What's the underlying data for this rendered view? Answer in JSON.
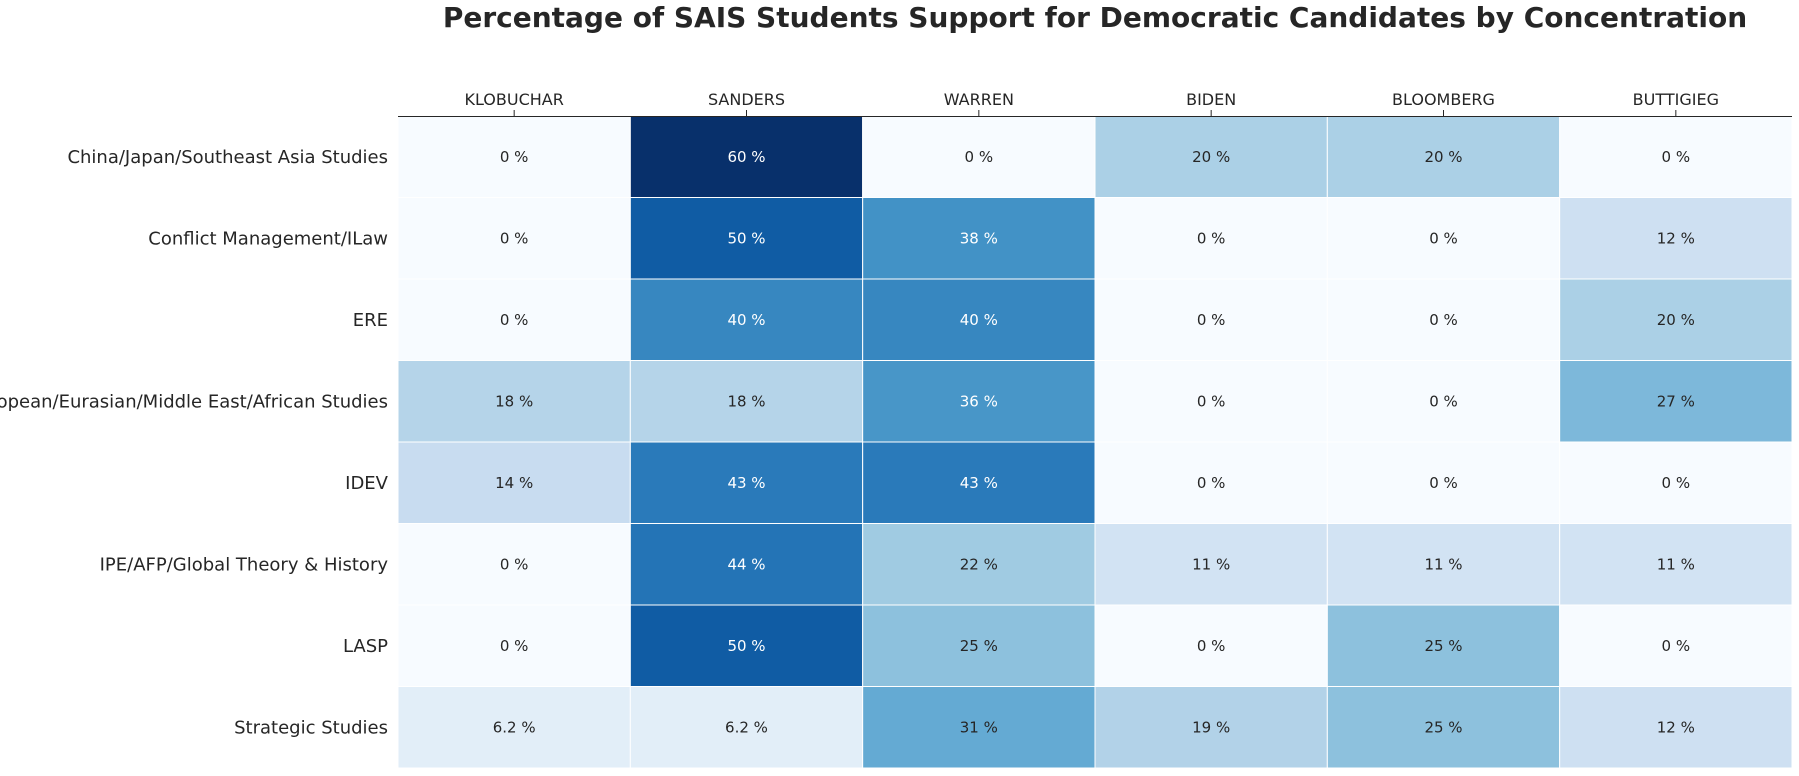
{
  "chart_data": {
    "type": "heatmap",
    "title": "Percentage of SAIS Students Support for Democratic Candidates by Concentration",
    "columns": [
      "KLOBUCHAR",
      "SANDERS",
      "WARREN",
      "BIDEN",
      "BLOOMBERG",
      "BUTTIGIEG"
    ],
    "rows": [
      "China/Japan/Southeast Asia Studies",
      "Conflict Management/ILaw",
      "ERE",
      "European/Eurasian/Middle East/African Studies",
      "IDEV",
      "IPE/AFP/Global Theory & History",
      "LASP",
      "Strategic Studies"
    ],
    "values": [
      [
        0,
        60,
        0,
        20,
        20,
        0
      ],
      [
        0,
        50,
        37.5,
        0,
        0,
        12.5
      ],
      [
        0,
        40,
        40,
        0,
        0,
        20
      ],
      [
        18.2,
        18.2,
        36.4,
        0,
        0,
        27.3
      ],
      [
        14.3,
        42.9,
        42.9,
        0,
        0,
        0
      ],
      [
        0,
        44.4,
        22.2,
        11.1,
        11.1,
        11.1
      ],
      [
        0,
        50,
        25,
        0,
        25,
        0
      ],
      [
        6.2,
        6.2,
        31.2,
        18.8,
        25,
        12.5
      ]
    ],
    "cell_labels": [
      [
        "0 %",
        "60 %",
        "0 %",
        "20 %",
        "20 %",
        "0 %"
      ],
      [
        "0 %",
        "50 %",
        "38 %",
        "0 %",
        "0 %",
        "12 %"
      ],
      [
        "0 %",
        "40 %",
        "40 %",
        "0 %",
        "0 %",
        "20 %"
      ],
      [
        "18 %",
        "18 %",
        "36 %",
        "0 %",
        "0 %",
        "27 %"
      ],
      [
        "14 %",
        "43 %",
        "43 %",
        "0 %",
        "0 %",
        "0 %"
      ],
      [
        "0 %",
        "44 %",
        "22 %",
        "11 %",
        "11 %",
        "11 %"
      ],
      [
        "0 %",
        "50 %",
        "25 %",
        "0 %",
        "25 %",
        "0 %"
      ],
      [
        "6.2 %",
        "6.2 %",
        "31 %",
        "19 %",
        "25 %",
        "12 %"
      ]
    ],
    "value_range": [
      0,
      60
    ],
    "colormap": "Blues",
    "colormap_stops": [
      "#f7fbff",
      "#deebf7",
      "#c6dbef",
      "#9ecae1",
      "#6baed6",
      "#4292c6",
      "#2171b5",
      "#08519c",
      "#08306b"
    ],
    "label_color_dark": "#262626",
    "label_color_light": "#ffffff",
    "column_labels_position": "top",
    "colorbar": false
  }
}
